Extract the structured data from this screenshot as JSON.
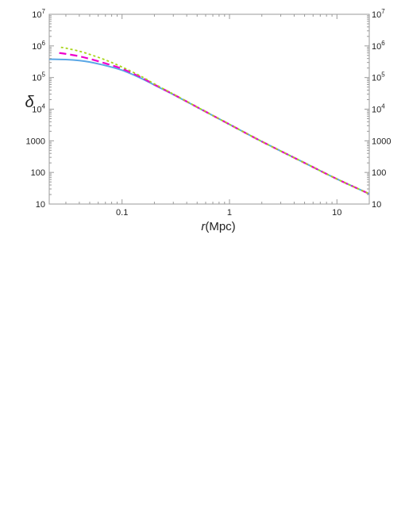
{
  "chart_data": {
    "type": "line",
    "xlabel": "(Mpc)",
    "xlabel_var": "r",
    "ylabel": "δ",
    "x_scale": "log",
    "y_scale": "log",
    "xlim": [
      0.021,
      20
    ],
    "ylim": [
      10,
      10000000
    ],
    "x_ticks": [
      {
        "value": 0.1,
        "label": "0.1"
      },
      {
        "value": 1,
        "label": "1"
      },
      {
        "value": 10,
        "label": "10"
      }
    ],
    "y_ticks": [
      {
        "value": 10,
        "label": "10"
      },
      {
        "value": 100,
        "label": "100"
      },
      {
        "value": 1000,
        "label": "1000"
      },
      {
        "value": 10000,
        "label": "10",
        "exp": "4"
      },
      {
        "value": 100000,
        "label": "10",
        "exp": "5"
      },
      {
        "value": 1000000,
        "label": "10",
        "exp": "6"
      },
      {
        "value": 10000000,
        "label": "10",
        "exp": "7"
      }
    ],
    "grid": false,
    "legend": "none",
    "series": [
      {
        "color": "#5aa7e6",
        "dash": "solid",
        "points": [
          [
            0.021,
            380000
          ],
          [
            0.03,
            370000
          ],
          [
            0.04,
            345000
          ],
          [
            0.05,
            310000
          ],
          [
            0.07,
            240000
          ],
          [
            0.1,
            170000
          ],
          [
            0.15,
            95000
          ],
          [
            0.2,
            58000
          ],
          [
            0.3,
            29000
          ],
          [
            0.5,
            11500
          ],
          [
            1,
            3300
          ],
          [
            2,
            950
          ],
          [
            5,
            200
          ],
          [
            10,
            62
          ],
          [
            20,
            21
          ]
        ]
      },
      {
        "color": "#ee00cc",
        "dash": "dashed",
        "points": [
          [
            0.026,
            600000
          ],
          [
            0.03,
            560000
          ],
          [
            0.04,
            470000
          ],
          [
            0.05,
            390000
          ],
          [
            0.07,
            280000
          ],
          [
            0.1,
            190000
          ],
          [
            0.15,
            102000
          ],
          [
            0.2,
            60000
          ],
          [
            0.3,
            29500
          ],
          [
            0.5,
            11600
          ],
          [
            1,
            3300
          ],
          [
            2,
            950
          ],
          [
            5,
            200
          ],
          [
            10,
            62
          ],
          [
            20,
            21
          ]
        ]
      },
      {
        "color": "#a8d418",
        "dash": "dotted",
        "points": [
          [
            0.027,
            900000
          ],
          [
            0.03,
            850000
          ],
          [
            0.04,
            680000
          ],
          [
            0.05,
            540000
          ],
          [
            0.07,
            360000
          ],
          [
            0.1,
            215000
          ],
          [
            0.15,
            110000
          ],
          [
            0.2,
            63000
          ],
          [
            0.3,
            30000
          ],
          [
            0.5,
            11700
          ],
          [
            1,
            3300
          ],
          [
            2,
            950
          ],
          [
            5,
            200
          ],
          [
            10,
            62
          ],
          [
            20,
            21
          ]
        ]
      }
    ]
  }
}
